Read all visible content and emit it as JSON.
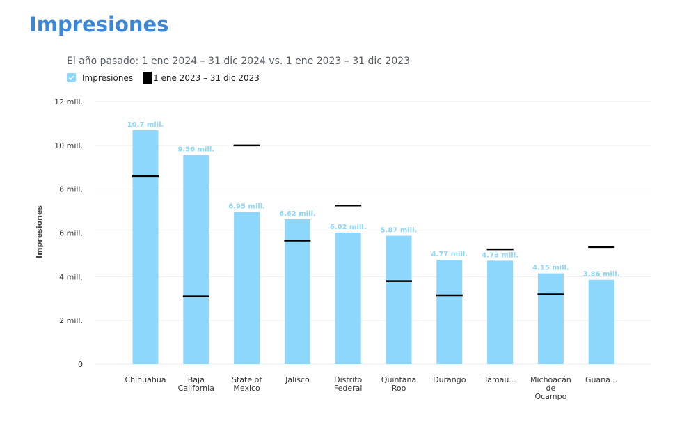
{
  "page": {
    "title": "Impresiones"
  },
  "chart_data": {
    "type": "bar",
    "subtitle": "El año pasado: 1 ene 2024 – 31 dic 2024 vs. 1 ene 2023 – 31 dic 2023",
    "ylabel": "Impresiones",
    "xlabel": "",
    "ylim": [
      0,
      12000000
    ],
    "y_ticks": [
      {
        "value": 0,
        "label": "0"
      },
      {
        "value": 2000000,
        "label": "2 mill."
      },
      {
        "value": 4000000,
        "label": "4 mill."
      },
      {
        "value": 6000000,
        "label": "6 mill."
      },
      {
        "value": 8000000,
        "label": "8 mill."
      },
      {
        "value": 10000000,
        "label": "10 mill."
      },
      {
        "value": 12000000,
        "label": "12 mill."
      }
    ],
    "grid": true,
    "legend_position": "top-left",
    "colors": {
      "bar": "#8dd6fc",
      "bar_label": "#8dd6fc",
      "comparison": "#000000"
    },
    "categories": [
      [
        "Chihuahua"
      ],
      [
        "Baja",
        "California"
      ],
      [
        "State of",
        "Mexico"
      ],
      [
        "Jalisco"
      ],
      [
        "Distrito",
        "Federal"
      ],
      [
        "Quintana",
        "Roo"
      ],
      [
        "Durango"
      ],
      [
        "Tamau..."
      ],
      [
        "Michoacán",
        "de",
        "Ocampo"
      ],
      [
        "Guana..."
      ]
    ],
    "series": [
      {
        "name": "Impresiones",
        "style": "bar",
        "values": [
          10700000,
          9560000,
          6950000,
          6620000,
          6020000,
          5870000,
          4770000,
          4730000,
          4150000,
          3860000
        ],
        "labels": [
          "10.7 mill.",
          "9.56 mill.",
          "6.95 mill.",
          "6.62 mill.",
          "6.02 mill.",
          "5.87 mill.",
          "4.77 mill.",
          "4.73 mill.",
          "4.15 mill.",
          "3.86 mill."
        ]
      },
      {
        "name": "1 ene 2023 – 31 dic 2023",
        "style": "marker",
        "values": [
          8600000,
          3100000,
          10000000,
          5650000,
          7250000,
          3800000,
          3150000,
          5250000,
          3200000,
          5350000
        ]
      }
    ]
  }
}
